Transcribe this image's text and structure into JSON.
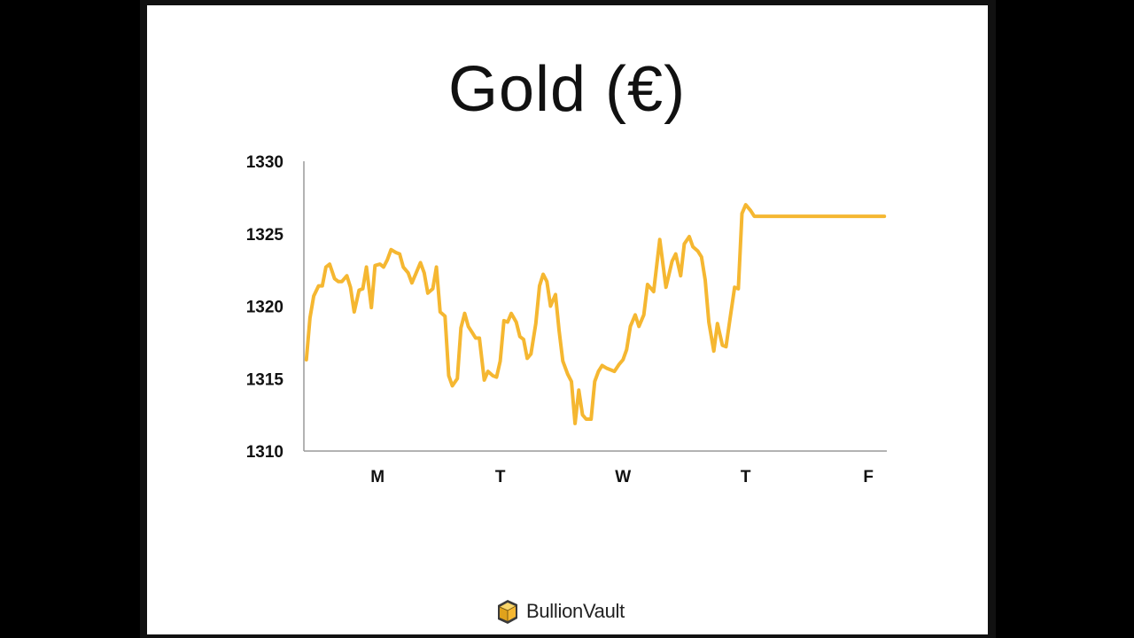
{
  "colors": {
    "line": "#f5b731",
    "axis": "#9a9a9a",
    "text": "#111111",
    "background": "#ffffff"
  },
  "brand": {
    "name": "BullionVault",
    "icon": "cube-logo-icon"
  },
  "chart_data": {
    "type": "line",
    "title": "Gold (€)",
    "xlabel": "",
    "ylabel": "",
    "ylim": [
      1310,
      1330
    ],
    "yticks": [
      1330,
      1325,
      1320,
      1315,
      1310
    ],
    "categories": [
      "M",
      "T",
      "W",
      "T",
      "F"
    ],
    "category_positions": [
      0.6,
      1.6,
      2.6,
      3.6,
      4.6
    ],
    "xlim": [
      0,
      4.75
    ],
    "grid": false,
    "legend": "none",
    "series": [
      {
        "x": [
          0.02,
          0.05,
          0.08,
          0.12,
          0.15,
          0.18,
          0.21,
          0.25,
          0.28,
          0.31,
          0.35,
          0.38,
          0.41,
          0.45,
          0.48,
          0.51,
          0.55,
          0.58,
          0.62,
          0.65,
          0.68,
          0.71,
          0.75,
          0.78,
          0.81,
          0.85,
          0.88,
          0.91,
          0.95,
          0.98,
          1.01,
          1.05,
          1.08,
          1.11,
          1.15,
          1.18,
          1.21,
          1.25,
          1.28,
          1.31,
          1.34,
          1.37,
          1.4,
          1.43,
          1.47,
          1.5,
          1.54,
          1.57,
          1.6,
          1.63,
          1.66,
          1.69,
          1.73,
          1.76,
          1.79,
          1.82,
          1.85,
          1.89,
          1.92,
          1.95,
          1.98,
          2.01,
          2.05,
          2.08,
          2.11,
          2.15,
          2.18,
          2.21,
          2.24,
          2.27,
          2.3,
          2.34,
          2.37,
          2.4,
          2.43,
          2.47,
          2.5,
          2.53,
          2.57,
          2.6,
          2.63,
          2.66,
          2.7,
          2.73,
          2.77,
          2.8,
          2.85,
          2.9,
          2.95,
          3.0,
          3.03,
          3.07,
          3.1,
          3.14,
          3.17,
          3.21,
          3.24,
          3.27,
          3.3,
          3.34,
          3.37,
          3.41,
          3.44,
          3.47,
          3.51,
          3.54,
          3.57,
          3.6,
          3.64,
          3.67,
          3.71,
          3.74,
          3.77,
          3.8,
          3.84,
          3.87,
          3.91,
          3.94,
          3.97,
          4.01,
          4.04,
          4.08,
          4.11,
          4.14,
          4.17,
          4.21,
          4.24,
          4.27,
          4.31,
          4.34,
          4.38,
          4.41,
          4.44,
          4.48,
          4.51,
          4.55,
          4.58,
          4.62,
          4.66,
          4.7,
          4.73
        ],
        "y": [
          1316.3,
          1319.2,
          1320.7,
          1321.4,
          1321.4,
          1322.7,
          1322.9,
          1321.9,
          1321.7,
          1321.7,
          1322.1,
          1321.3,
          1319.6,
          1321.1,
          1321.2,
          1322.7,
          1319.9,
          1322.8,
          1322.9,
          1322.7,
          1323.2,
          1323.9,
          1323.7,
          1323.6,
          1322.7,
          1322.3,
          1321.6,
          1322.2,
          1323.0,
          1322.3,
          1320.9,
          1321.2,
          1322.7,
          1319.6,
          1319.3,
          1315.2,
          1314.5,
          1315.0,
          1318.5,
          1319.5,
          1318.6,
          1318.2,
          1317.8,
          1317.8,
          1314.9,
          1315.5,
          1315.2,
          1315.1,
          1316.2,
          1319.0,
          1318.9,
          1319.5,
          1318.9,
          1317.9,
          1317.7,
          1316.4,
          1316.7,
          1318.8,
          1321.4,
          1322.2,
          1321.7,
          1320.0,
          1320.8,
          1318.3,
          1316.2,
          1315.3,
          1314.8,
          1311.9,
          1314.2,
          1312.5,
          1312.2,
          1312.2,
          1314.8,
          1315.5,
          1315.9,
          1315.7,
          1315.6,
          1315.5,
          1316.0,
          1316.3,
          1317.0,
          1318.6,
          1319.4,
          1318.6,
          1319.4,
          1321.5,
          1321.0,
          1324.6,
          1321.3,
          1323.1,
          1323.6,
          1322.1,
          1324.3,
          1324.8,
          1324.1,
          1323.8,
          1323.4,
          1321.8,
          1318.9,
          1316.9,
          1318.8,
          1317.3,
          1317.2,
          1319.0,
          1321.3,
          1321.2,
          1326.4,
          1327.0,
          1326.6,
          1326.2,
          1326.2,
          1326.2,
          1326.2,
          1326.2,
          1326.2,
          1326.2,
          1326.2,
          1326.2,
          1326.2,
          1326.2,
          1326.2,
          1326.2,
          1326.2,
          1326.2,
          1326.2,
          1326.2,
          1326.2,
          1326.2,
          1326.2,
          1326.2,
          1326.2,
          1326.2,
          1326.2,
          1326.2,
          1326.2,
          1326.2,
          1326.2,
          1326.2,
          1326.2,
          1326.2,
          1326.2
        ]
      }
    ]
  }
}
